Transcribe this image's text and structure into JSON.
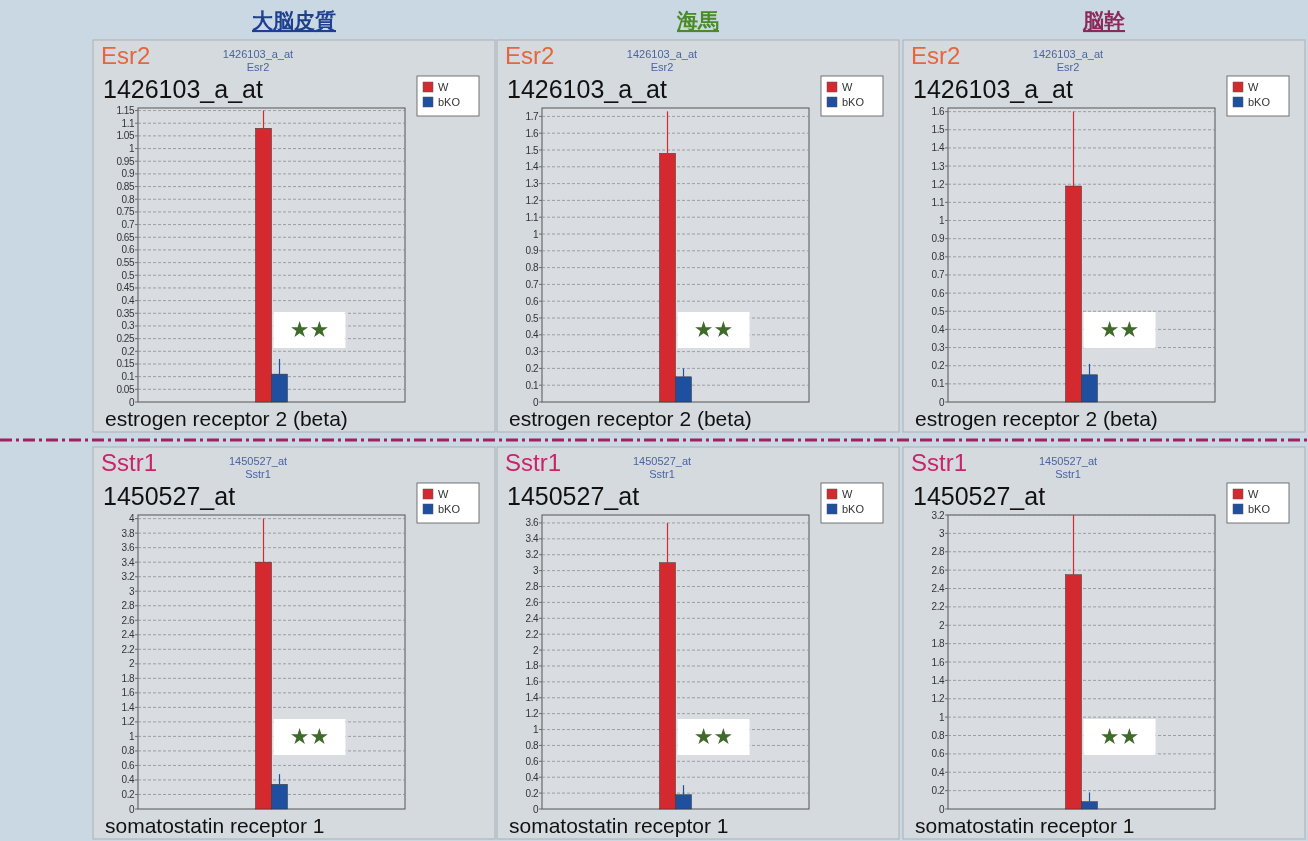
{
  "chart_data": [
    {
      "type": "bar",
      "title": "大脳皮質",
      "subtitle": "Esr2",
      "categories": [
        null
      ],
      "grid": "y",
      "legend": "top right",
      "series": [
        {
          "name": "W",
          "color": "#d42a2f",
          "values": [
            1.08
          ],
          "errors": [
            [
              1.08,
              1.15
            ]
          ]
        },
        {
          "name": "bKO",
          "color": "#1f4f9f",
          "values": [
            0.11
          ],
          "errors": [
            [
              0.11,
              0.17
            ]
          ]
        }
      ],
      "ylim": [
        0,
        1.16
      ],
      "yticks": [
        0,
        0.05,
        0.1,
        0.15,
        0.2,
        0.25,
        0.3,
        0.35,
        0.4,
        0.45,
        0.5,
        0.55,
        0.6,
        0.65,
        0.7,
        0.75,
        0.8,
        0.85,
        0.9,
        0.95,
        1,
        1.05,
        1.1,
        1.15
      ],
      "annotations": [
        "1426103_a_at",
        "1426103_a_at",
        "Esr2",
        "estrogen receptor 2 (beta)",
        "★★"
      ]
    },
    {
      "type": "bar",
      "title": "海馬",
      "subtitle": "Esr2",
      "categories": [
        null
      ],
      "grid": "y",
      "legend": "top right",
      "series": [
        {
          "name": "W",
          "color": "#d42a2f",
          "values": [
            1.48
          ],
          "errors": [
            [
              1.48,
              1.73
            ]
          ]
        },
        {
          "name": "bKO",
          "color": "#1f4f9f",
          "values": [
            0.15
          ],
          "errors": [
            [
              0.15,
              0.2
            ]
          ]
        }
      ],
      "ylim": [
        0,
        1.75
      ],
      "yticks": [
        0,
        0.1,
        0.2,
        0.3,
        0.4,
        0.5,
        0.6,
        0.7,
        0.8,
        0.9,
        1,
        1.1,
        1.2,
        1.3,
        1.4,
        1.5,
        1.6,
        1.7
      ],
      "annotations": [
        "1426103_a_at",
        "1426103_a_at",
        "Esr2",
        "estrogen receptor 2 (beta)",
        "★★"
      ]
    },
    {
      "type": "bar",
      "title": "脳幹",
      "subtitle": "Esr2",
      "categories": [
        null
      ],
      "grid": "y",
      "legend": "top right",
      "series": [
        {
          "name": "W",
          "color": "#d42a2f",
          "values": [
            1.19
          ],
          "errors": [
            [
              1.19,
              1.6
            ]
          ]
        },
        {
          "name": "bKO",
          "color": "#1f4f9f",
          "values": [
            0.15
          ],
          "errors": [
            [
              0.15,
              0.21
            ]
          ]
        }
      ],
      "ylim": [
        0,
        1.62
      ],
      "yticks": [
        0,
        0.1,
        0.2,
        0.3,
        0.4,
        0.5,
        0.6,
        0.7,
        0.8,
        0.9,
        1,
        1.1,
        1.2,
        1.3,
        1.4,
        1.5,
        1.6
      ],
      "annotations": [
        "1426103_a_at",
        "1426103_a_at",
        "Esr2",
        "estrogen receptor 2 (beta)",
        "★★"
      ]
    },
    {
      "type": "bar",
      "subtitle": "Sstr1",
      "categories": [
        null
      ],
      "grid": "y",
      "legend": "top right",
      "series": [
        {
          "name": "W",
          "color": "#d42a2f",
          "values": [
            3.4
          ],
          "errors": [
            [
              3.4,
              4.0
            ]
          ]
        },
        {
          "name": "bKO",
          "color": "#1f4f9f",
          "values": [
            0.34
          ],
          "errors": [
            [
              0.34,
              0.48
            ]
          ]
        }
      ],
      "ylim": [
        0,
        4.05
      ],
      "yticks": [
        0,
        0.2,
        0.4,
        0.6,
        0.8,
        1,
        1.2,
        1.4,
        1.6,
        1.8,
        2,
        2.2,
        2.4,
        2.6,
        2.8,
        3,
        3.2,
        3.4,
        3.6,
        3.8,
        4
      ],
      "annotations": [
        "1450527_at",
        "1450527_at",
        "Sstr1",
        "somatostatin receptor 1",
        "★★"
      ]
    },
    {
      "type": "bar",
      "subtitle": "Sstr1",
      "categories": [
        null
      ],
      "grid": "y",
      "legend": "top right",
      "series": [
        {
          "name": "W",
          "color": "#d42a2f",
          "values": [
            3.1
          ],
          "errors": [
            [
              3.1,
              3.6
            ]
          ]
        },
        {
          "name": "bKO",
          "color": "#1f4f9f",
          "values": [
            0.18
          ],
          "errors": [
            [
              0.18,
              0.3
            ]
          ]
        }
      ],
      "ylim": [
        0,
        3.7
      ],
      "yticks": [
        0,
        0.2,
        0.4,
        0.6,
        0.8,
        1,
        1.2,
        1.4,
        1.6,
        1.8,
        2,
        2.2,
        2.4,
        2.6,
        2.8,
        3,
        3.2,
        3.4,
        3.6
      ],
      "annotations": [
        "1450527_at",
        "1450527_at",
        "Sstr1",
        "somatostatin receptor 1",
        "★★"
      ]
    },
    {
      "type": "bar",
      "subtitle": "Sstr1",
      "categories": [
        null
      ],
      "grid": "y",
      "legend": "top right",
      "series": [
        {
          "name": "W",
          "color": "#d42a2f",
          "values": [
            2.55
          ],
          "errors": [
            [
              2.55,
              3.2
            ]
          ]
        },
        {
          "name": "bKO",
          "color": "#1f4f9f",
          "values": [
            0.08
          ],
          "errors": [
            [
              0.08,
              0.18
            ]
          ]
        }
      ],
      "ylim": [
        0,
        3.2
      ],
      "yticks": [
        0,
        0.2,
        0.4,
        0.6,
        0.8,
        1,
        1.2,
        1.4,
        1.6,
        1.8,
        2,
        2.2,
        2.4,
        2.6,
        2.8,
        3,
        3.2
      ],
      "annotations": [
        "1450527_at",
        "1450527_at",
        "Sstr1",
        "somatostatin receptor 1",
        "★★"
      ]
    }
  ]
}
